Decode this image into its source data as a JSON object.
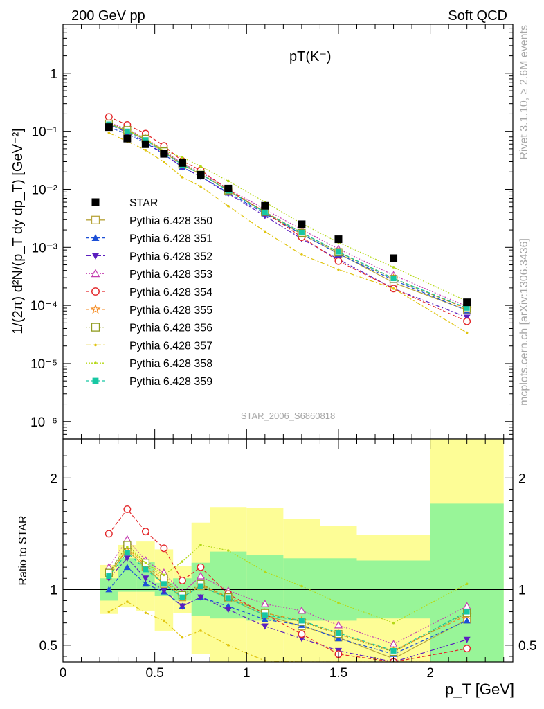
{
  "header": {
    "left": "200 GeV pp",
    "right": "Soft QCD"
  },
  "side_labels": {
    "rivet": "Rivet 3.1.10, ≥ 2.6M events",
    "source": "mcplots.cern.ch [arXiv:1306.3436]"
  },
  "chart_data": {
    "type": "scatter",
    "title": "pT(K⁻)",
    "watermark": "STAR_2006_S6860818",
    "main_panel": {
      "ylabel": "1/(2π) d²N/(p_T dy dp_T) [GeV⁻²]",
      "yscale": "log",
      "ylim": [
        5e-07,
        7
      ],
      "yticks": [
        "1",
        "10⁻¹",
        "10⁻²",
        "10⁻³",
        "10⁻⁴",
        "10⁻⁵",
        "10⁻⁶"
      ],
      "legend_position": "left"
    },
    "ratio_panel": {
      "ylabel": "Ratio to STAR",
      "ylim": [
        0.35,
        2.35
      ],
      "yticks": [
        "0.5",
        "1",
        "2"
      ],
      "reference_line": 1,
      "bands": {
        "edges": [
          0.2,
          0.3,
          0.4,
          0.5,
          0.6,
          0.7,
          0.8,
          1.0,
          1.2,
          1.4,
          1.6,
          2.0,
          2.4
        ],
        "inner_lo": [
          0.9,
          0.98,
          0.98,
          0.94,
          0.9,
          0.76,
          0.74,
          0.72,
          0.72,
          0.72,
          0.74,
          0.3
        ],
        "inner_hi": [
          1.1,
          1.28,
          1.25,
          1.06,
          1.1,
          1.24,
          1.34,
          1.31,
          1.28,
          1.28,
          1.26,
          1.77
        ],
        "outer_lo": [
          0.78,
          0.84,
          0.81,
          0.63,
          0.79,
          0.42,
          0.3,
          0.3,
          0.3,
          0.3,
          0.3,
          0.3
        ],
        "outer_hi": [
          1.22,
          1.4,
          1.43,
          1.36,
          1.21,
          1.6,
          1.74,
          1.73,
          1.63,
          1.57,
          1.49,
          2.35
        ]
      }
    },
    "xlabel": "p_T [GeV]",
    "xlim": [
      0,
      2.45
    ],
    "xticks": [
      "0",
      "0.5",
      "1",
      "1.5",
      "2"
    ],
    "x": [
      0.25,
      0.35,
      0.45,
      0.55,
      0.65,
      0.75,
      0.9,
      1.1,
      1.3,
      1.5,
      1.8,
      2.2
    ],
    "data": {
      "name": "STAR",
      "values": [
        0.118,
        0.075,
        0.06,
        0.041,
        0.0285,
        0.0178,
        0.0103,
        0.0052,
        0.0025,
        0.00138,
        0.00065,
        0.000113
      ]
    },
    "series": [
      {
        "name": "Pythia 6.428 350",
        "color": "#b8a53d",
        "marker": "open-square",
        "dash": "solid",
        "ratio": [
          1.15,
          1.35,
          1.2,
          1.05,
          0.93,
          1.03,
          0.92,
          0.77,
          0.67,
          0.57,
          0.38,
          0.73
        ]
      },
      {
        "name": "Pythia 6.428 351",
        "color": "#1c4fd6",
        "marker": "filled-triangle-up",
        "dash": "dashed",
        "ratio": [
          1.0,
          1.2,
          1.05,
          0.98,
          0.85,
          0.93,
          0.85,
          0.73,
          0.68,
          0.56,
          0.42,
          0.72
        ]
      },
      {
        "name": "Pythia 6.428 352",
        "color": "#5b1fbf",
        "marker": "filled-triangle-down",
        "dash": "dashdot",
        "ratio": [
          1.1,
          1.28,
          1.1,
          0.99,
          0.85,
          0.93,
          0.82,
          0.67,
          0.56,
          0.45,
          0.3,
          0.55
        ]
      },
      {
        "name": "Pythia 6.428 353",
        "color": "#c43fb0",
        "marker": "open-triangle-up",
        "dash": "dotted",
        "ratio": [
          1.2,
          1.45,
          1.26,
          1.15,
          0.97,
          1.12,
          0.99,
          0.87,
          0.81,
          0.68,
          0.51,
          0.85
        ]
      },
      {
        "name": "Pythia 6.428 354",
        "color": "#e32629",
        "marker": "open-circle",
        "dash": "dashed",
        "ratio": [
          1.5,
          1.72,
          1.52,
          1.37,
          1.08,
          1.2,
          0.96,
          0.78,
          0.6,
          0.42,
          0.3,
          0.47
        ]
      },
      {
        "name": "Pythia 6.428 355",
        "color": "#f58a1f",
        "marker": "open-star",
        "dash": "dashed",
        "ratio": [
          1.12,
          1.37,
          1.22,
          1.08,
          0.93,
          1.04,
          0.93,
          0.79,
          0.72,
          0.6,
          0.45,
          0.77
        ]
      },
      {
        "name": "Pythia 6.428 356",
        "color": "#8f9b1f",
        "marker": "open-square",
        "dash": "dotted",
        "ratio": [
          1.15,
          1.4,
          1.24,
          1.1,
          0.95,
          1.05,
          0.93,
          0.79,
          0.71,
          0.6,
          0.44,
          0.79
        ]
      },
      {
        "name": "Pythia 6.428 357",
        "color": "#e0c40f",
        "marker": "small-dot",
        "dash": "dashdot",
        "ratio": [
          0.8,
          0.89,
          0.79,
          0.72,
          0.57,
          0.63,
          0.5,
          0.36,
          0.3,
          0.3,
          0.3,
          0.3
        ]
      },
      {
        "name": "Pythia 6.428 358",
        "color": "#b5d818",
        "marker": "small-dot",
        "dash": "dotted",
        "ratio": [
          1.12,
          1.38,
          1.24,
          1.13,
          1.25,
          1.4,
          1.35,
          1.16,
          1.03,
          0.88,
          0.7,
          1.05
        ]
      },
      {
        "name": "Pythia 6.428 359",
        "color": "#17c7a3",
        "marker": "filled-square",
        "dash": "dashed",
        "ratio": [
          1.12,
          1.33,
          1.18,
          1.05,
          0.93,
          1.03,
          0.92,
          0.77,
          0.72,
          0.61,
          0.45,
          0.8
        ]
      }
    ]
  }
}
